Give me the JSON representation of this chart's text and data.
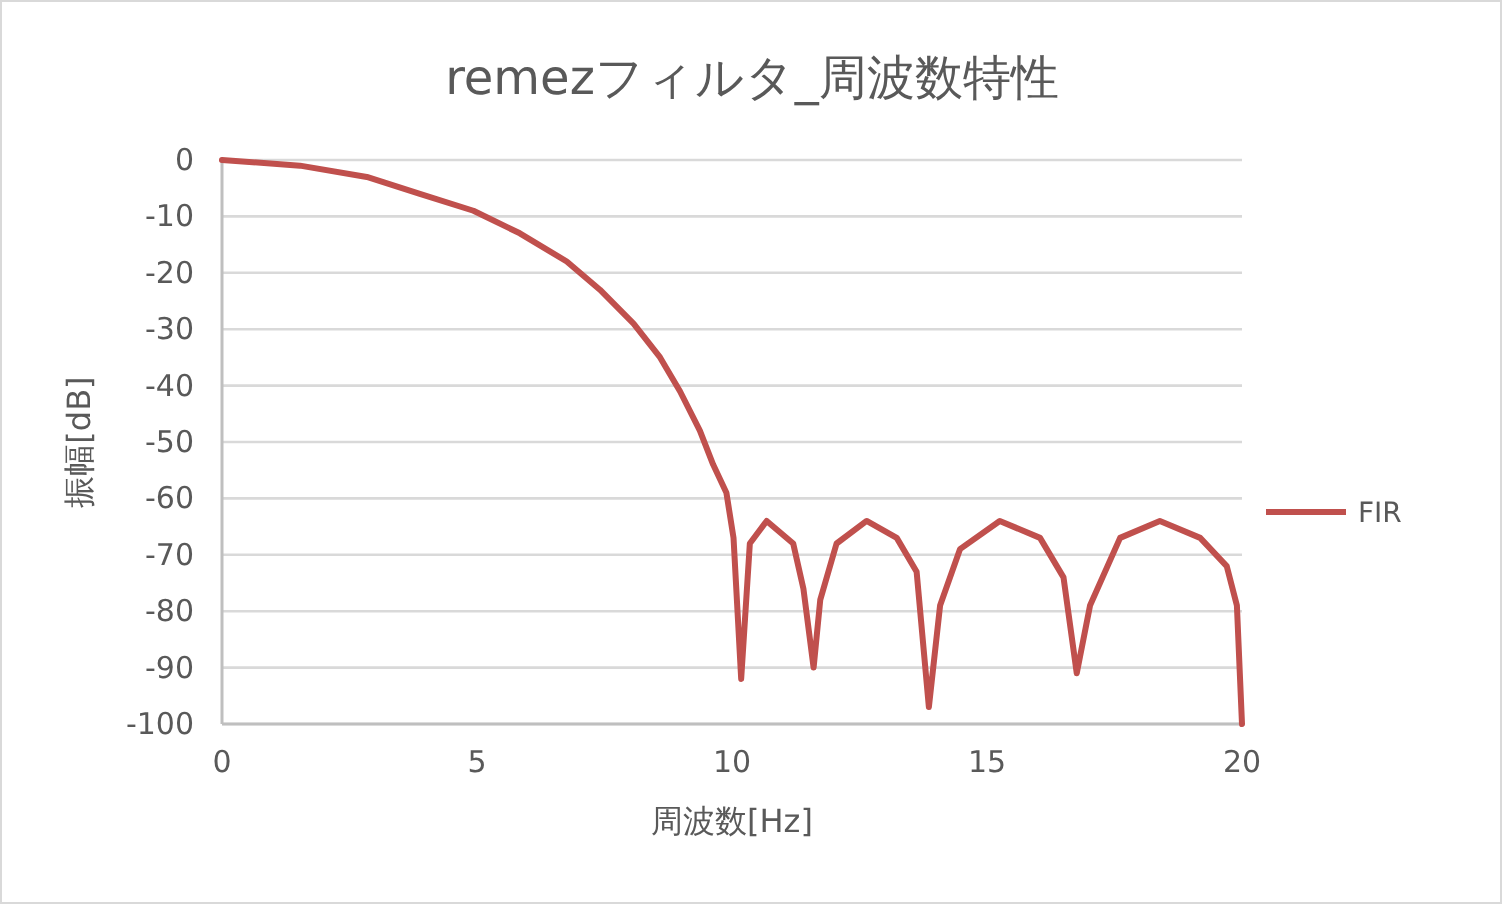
{
  "chart_data": {
    "type": "line",
    "title": "remezフィルタ_周波数特性",
    "xlabel": "周波数[Hz]",
    "ylabel": "振幅[dB]",
    "x": [
      0,
      1.53,
      2.84,
      3.88,
      4.93,
      5.84,
      6.76,
      7.41,
      8.07,
      8.59,
      8.98,
      9.37,
      9.63,
      9.89,
      10.03,
      10.18,
      10.35,
      10.68,
      11.2,
      11.4,
      11.6,
      11.73,
      12.05,
      12.64,
      13.23,
      13.62,
      13.86,
      14.08,
      14.47,
      15.25,
      16.04,
      16.5,
      16.76,
      17.02,
      17.61,
      18.39,
      19.18,
      19.7,
      19.9,
      20
    ],
    "series": [
      {
        "name": "FIR",
        "color": "#c0504d",
        "values": [
          0,
          -1,
          -3,
          -6,
          -9,
          -13,
          -18,
          -23,
          -29,
          -35,
          -41,
          -48,
          -54,
          -59,
          -67,
          -92,
          -68,
          -64,
          -68,
          -76,
          -90,
          -78,
          -68,
          -64,
          -67,
          -73,
          -97,
          -79,
          -69,
          -64,
          -67,
          -74,
          -91,
          -79,
          -67,
          -64,
          -67,
          -72,
          -79,
          -100
        ]
      }
    ],
    "xlim": [
      0,
      20
    ],
    "ylim": [
      -100,
      0
    ],
    "xticks": [
      0,
      5,
      10,
      15,
      20
    ],
    "yticks": [
      -100,
      -90,
      -80,
      -70,
      -60,
      -50,
      -40,
      -30,
      -20,
      -10,
      0
    ],
    "grid": "y",
    "legend": "right"
  }
}
